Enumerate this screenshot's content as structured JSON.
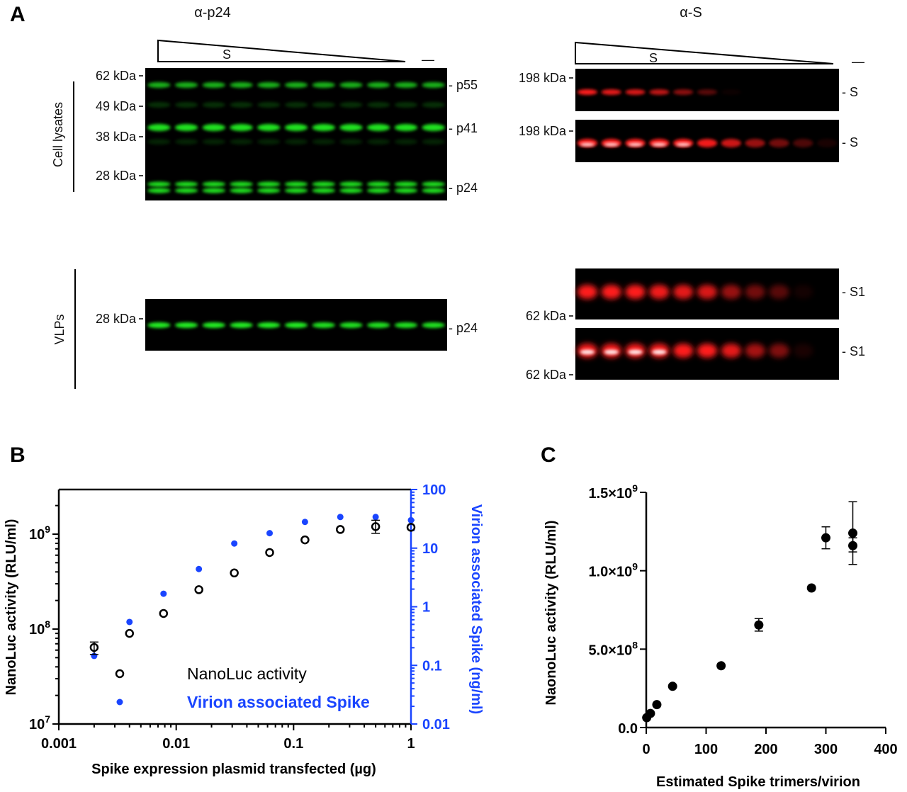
{
  "panel_labels": {
    "a": "A",
    "b": "B",
    "c": "C"
  },
  "panel_a": {
    "left": {
      "title": "α-p24",
      "gradient_label": "S",
      "control_label": "—",
      "cell_lysates_label": "Cell lysates",
      "vlps_label": "VLPs",
      "markers_lysate": [
        "62 kDa",
        "49 kDa",
        "38 kDa",
        "28 kDa"
      ],
      "markers_vlp": [
        "28 kDa"
      ],
      "bands_lysate": [
        "- p55",
        "- p41",
        "- p24"
      ],
      "bands_vlp": [
        "- p24"
      ],
      "color": "#22ee22",
      "lysate_intensity": {
        "p55": 0.75,
        "faint49": 0.2,
        "p41": 0.95,
        "faint38": 0.15,
        "p24": 0.95
      },
      "vlp_intensity": [
        1,
        1,
        1,
        1,
        1,
        1,
        0.95,
        0.95,
        0.95,
        0.95,
        0.95
      ]
    },
    "right": {
      "title": "α-S",
      "gradient_label": "S",
      "control_label": "—",
      "color": "#ff1a1a",
      "blots": [
        {
          "marker": "198 kDa",
          "band": "- S",
          "intensity": [
            1,
            0.9,
            0.85,
            0.75,
            0.55,
            0.35,
            0.05,
            0,
            0,
            0,
            0
          ],
          "saturated": 0
        },
        {
          "marker": "198 kDa",
          "band": "- S",
          "intensity": [
            1,
            1,
            1,
            1,
            1,
            0.95,
            0.8,
            0.6,
            0.45,
            0.3,
            0.1
          ],
          "saturated": 5
        },
        {
          "marker": "62 kDa",
          "band": "- S1",
          "intensity": [
            1,
            1,
            1,
            0.95,
            0.9,
            0.85,
            0.6,
            0.45,
            0.35,
            0.08,
            0
          ],
          "saturated": 0
        },
        {
          "marker": "62 kDa",
          "band": "- S1",
          "intensity": [
            1,
            1,
            1,
            1,
            1,
            1,
            0.9,
            0.65,
            0.5,
            0.1,
            0
          ],
          "saturated": 4
        }
      ]
    }
  },
  "chart_data": [
    {
      "type": "scatter",
      "xlabel": "Spike expression plasmid transfected  (µg)",
      "ylabel": "NanoLuc activity (RLU/ml)",
      "y2label": "Virion associated Spike (ng/ml)",
      "xscale": "log",
      "yscale": "log",
      "y2scale": "log",
      "xlim": [
        0.001,
        1
      ],
      "ylim": [
        10000000.0,
        3000000000.0
      ],
      "y2lim": [
        0.01,
        100
      ],
      "xticks": [
        "0.001",
        "0.01",
        "0.1",
        "1"
      ],
      "yticks": [
        {
          "base": "10",
          "exp": "7"
        },
        {
          "base": "10",
          "exp": "8"
        },
        {
          "base": "10",
          "exp": "9"
        }
      ],
      "y2ticks": [
        "0.01",
        "0.1",
        "1",
        "10",
        "100"
      ],
      "legend_placement": "bottom-center",
      "colors": {
        "nanoluc": "#000000",
        "spike": "#1a45ff"
      },
      "x": [
        0.002,
        0.004,
        0.0078,
        0.0156,
        0.03125,
        0.0625,
        0.125,
        0.25,
        0.5,
        1
      ],
      "series": [
        {
          "name": "NanoLuc activity",
          "axis": "left",
          "marker": "open-circle",
          "values": [
            64000000.0,
            90000000.0,
            146000000.0,
            260000000.0,
            390000000.0,
            640000000.0,
            870000000.0,
            1120000000.0,
            1200000000.0,
            1180000000.0
          ],
          "error_low": [
            54000000.0,
            null,
            null,
            null,
            null,
            null,
            null,
            null,
            1020000000.0,
            null
          ],
          "error_high": [
            73000000.0,
            null,
            null,
            null,
            null,
            null,
            null,
            null,
            1400000000.0,
            null
          ]
        },
        {
          "name": "Virion associated Spike",
          "axis": "right",
          "marker": "filled-dot",
          "values": [
            0.145,
            0.55,
            1.67,
            4.4,
            12,
            18,
            28,
            34,
            34,
            30
          ]
        }
      ]
    },
    {
      "type": "scatter",
      "xlabel": "Estimated Spike trimers/virion",
      "ylabel": "NaonoLuc activity (RLU/ml)",
      "xlim": [
        0,
        400
      ],
      "ylim": [
        0,
        1500000000.0
      ],
      "xticks": [
        "0",
        "100",
        "200",
        "300",
        "400"
      ],
      "yticks": [
        {
          "base": "0.0",
          "exp": ""
        },
        {
          "base": "5.0×10",
          "exp": "8"
        },
        {
          "base": "1.0×10",
          "exp": "9"
        },
        {
          "base": "1.5×10",
          "exp": "9"
        }
      ],
      "points": [
        {
          "x": 0.8,
          "y": 63000000.0
        },
        {
          "x": 7,
          "y": 90000000.0
        },
        {
          "x": 17.7,
          "y": 146000000.0
        },
        {
          "x": 44,
          "y": 263000000.0
        },
        {
          "x": 125,
          "y": 394000000.0
        },
        {
          "x": 188,
          "y": 654000000.0,
          "lo": 615000000.0,
          "hi": 695000000.0
        },
        {
          "x": 276,
          "y": 890000000.0
        },
        {
          "x": 300,
          "y": 1210000000.0,
          "lo": 1140000000.0,
          "hi": 1280000000.0
        },
        {
          "x": 345,
          "y": 1240000000.0,
          "lo": 1040000000.0,
          "hi": 1440000000.0
        },
        {
          "x": 345,
          "y": 1160000000.0,
          "lo": 1120000000.0,
          "hi": 1210000000.0
        }
      ]
    }
  ]
}
